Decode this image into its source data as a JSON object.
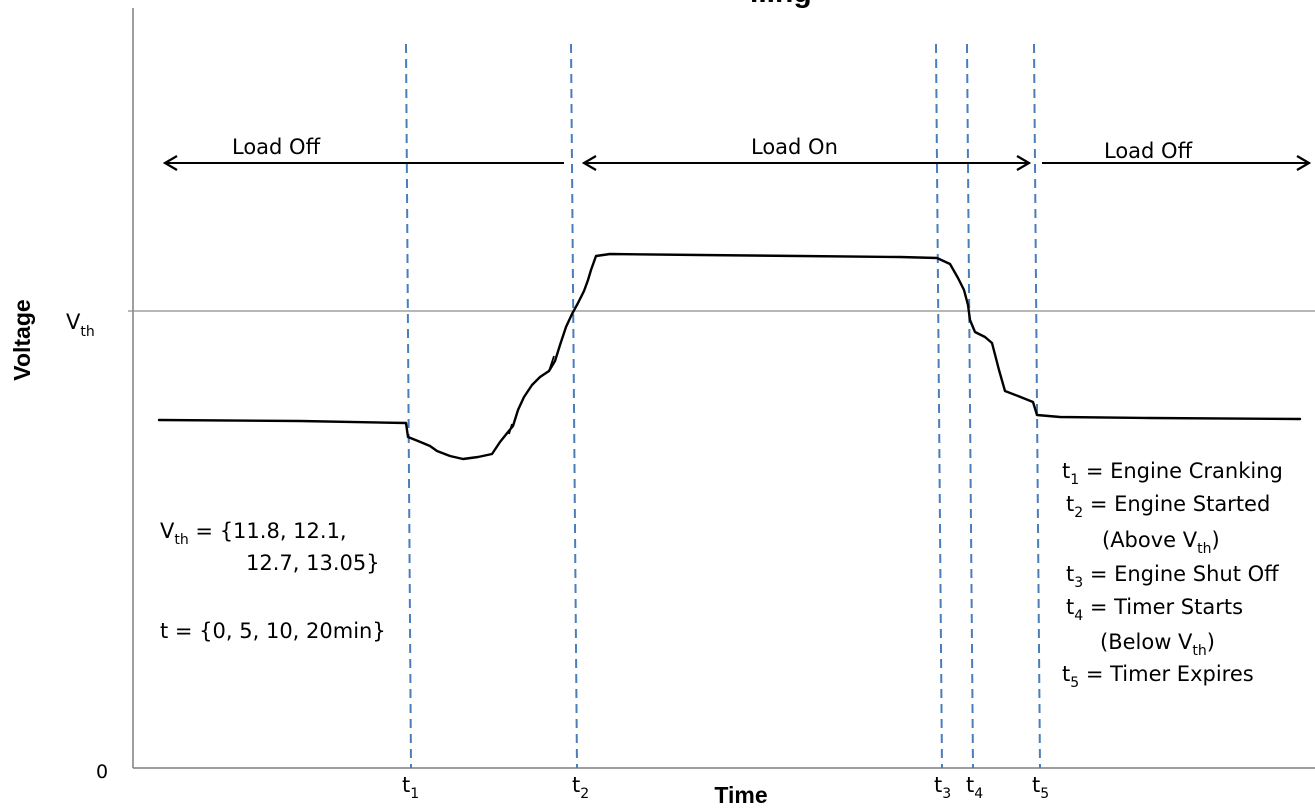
{
  "title": "...ng",
  "axes": {
    "ylabel": "Voltage",
    "xlabel": "Time",
    "y_zero": "0",
    "threshold_label": {
      "base": "V",
      "sub": "th"
    }
  },
  "time_markers": [
    {
      "base": "t",
      "sub": "1"
    },
    {
      "base": "t",
      "sub": "2"
    },
    {
      "base": "t",
      "sub": "3"
    },
    {
      "base": "t",
      "sub": "4"
    },
    {
      "base": "t",
      "sub": "5"
    }
  ],
  "regions": [
    {
      "label": "Load Off"
    },
    {
      "label": "Load On"
    },
    {
      "label": "Load Off"
    }
  ],
  "parameters": {
    "vth_base": "V",
    "vth_sub": "th",
    "vth_values_line1": " = {11.8, 12.1,",
    "vth_values_line2": "12.7, 13.05}",
    "t_values": "t = {0, 5, 10, 20min}"
  },
  "legend": [
    {
      "pre": "t",
      "sub": "1",
      "post": " = Engine Cranking"
    },
    {
      "pre": "t",
      "sub": "2",
      "post": " = Engine Started"
    },
    {
      "pre": "(Above V",
      "sub": "th",
      "post": ")"
    },
    {
      "pre": "t",
      "sub": "3",
      "post": " = Engine Shut Off"
    },
    {
      "pre": "t",
      "sub": "4",
      "post": " = Timer Starts"
    },
    {
      "pre": "(Below V",
      "sub": "th",
      "post": ")"
    },
    {
      "pre": "t",
      "sub": "5",
      "post": " = Timer Expires"
    }
  ],
  "colors": {
    "dashed_marker": "#4a7ebb",
    "curve": "#000000",
    "axis": "#7f7f7f",
    "threshold": "#8c8c8c"
  }
}
